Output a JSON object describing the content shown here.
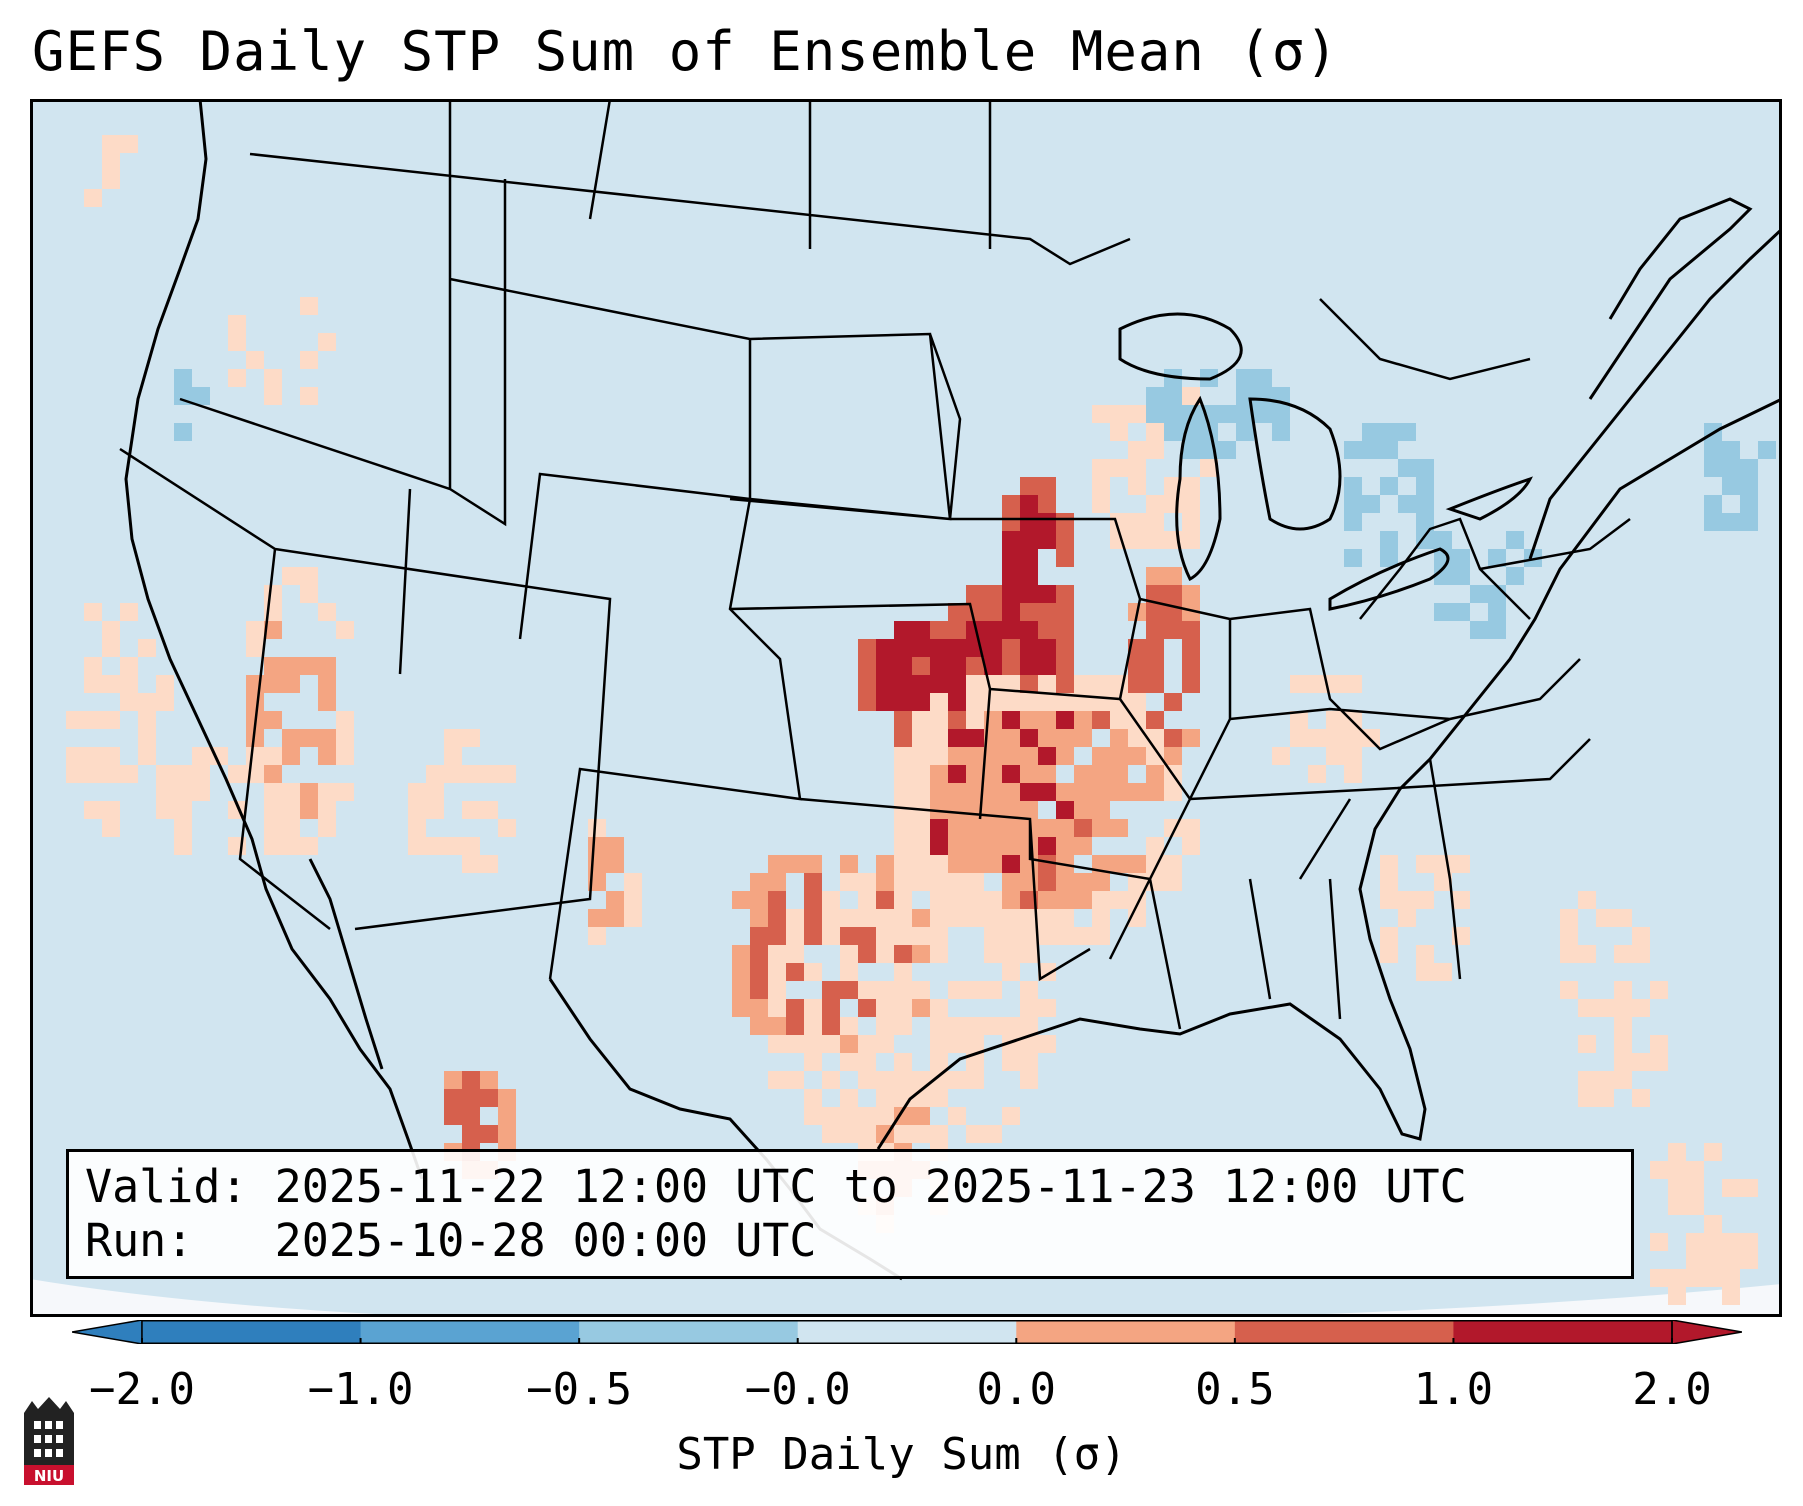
{
  "title": "GEFS Daily STP Sum of Ensemble Mean (σ)",
  "info": {
    "valid_line": "Valid: 2025-11-22 12:00 UTC to 2025-11-23 12:00 UTC",
    "run_line": "Run:   2025-10-28 00:00 UTC"
  },
  "colorbar": {
    "label": "STP Daily Sum (σ)",
    "ticks": [
      "−2.0",
      "−1.0",
      "−0.5",
      "−0.0",
      "0.0",
      "0.5",
      "1.0",
      "2.0"
    ],
    "colors": [
      "#2f7fbd",
      "#5aa3d2",
      "#97c9e1",
      "#d1e5f0",
      "#fddbc7",
      "#f4a582",
      "#d6604d",
      "#b2182b"
    ],
    "extend": "both"
  },
  "map": {
    "ocean_color": "#d1e5f0",
    "land_color": "#d1e5f0",
    "outside_color": "#f6f8fb",
    "border_color": "#000000",
    "regions": [
      {
        "name": "Plains-Midwest",
        "intensity": 2.0
      },
      {
        "name": "Texas",
        "intensity": 1.0
      },
      {
        "name": "Illinois-Indiana",
        "intensity": 1.0
      },
      {
        "name": "California coast",
        "intensity": 0.5
      },
      {
        "name": "Arizona-New Mexico",
        "intensity": 0.5
      },
      {
        "name": "Great Lakes",
        "intensity": -0.5
      },
      {
        "name": "Northeast",
        "intensity": -0.5
      }
    ]
  },
  "logo_text": "NIU"
}
